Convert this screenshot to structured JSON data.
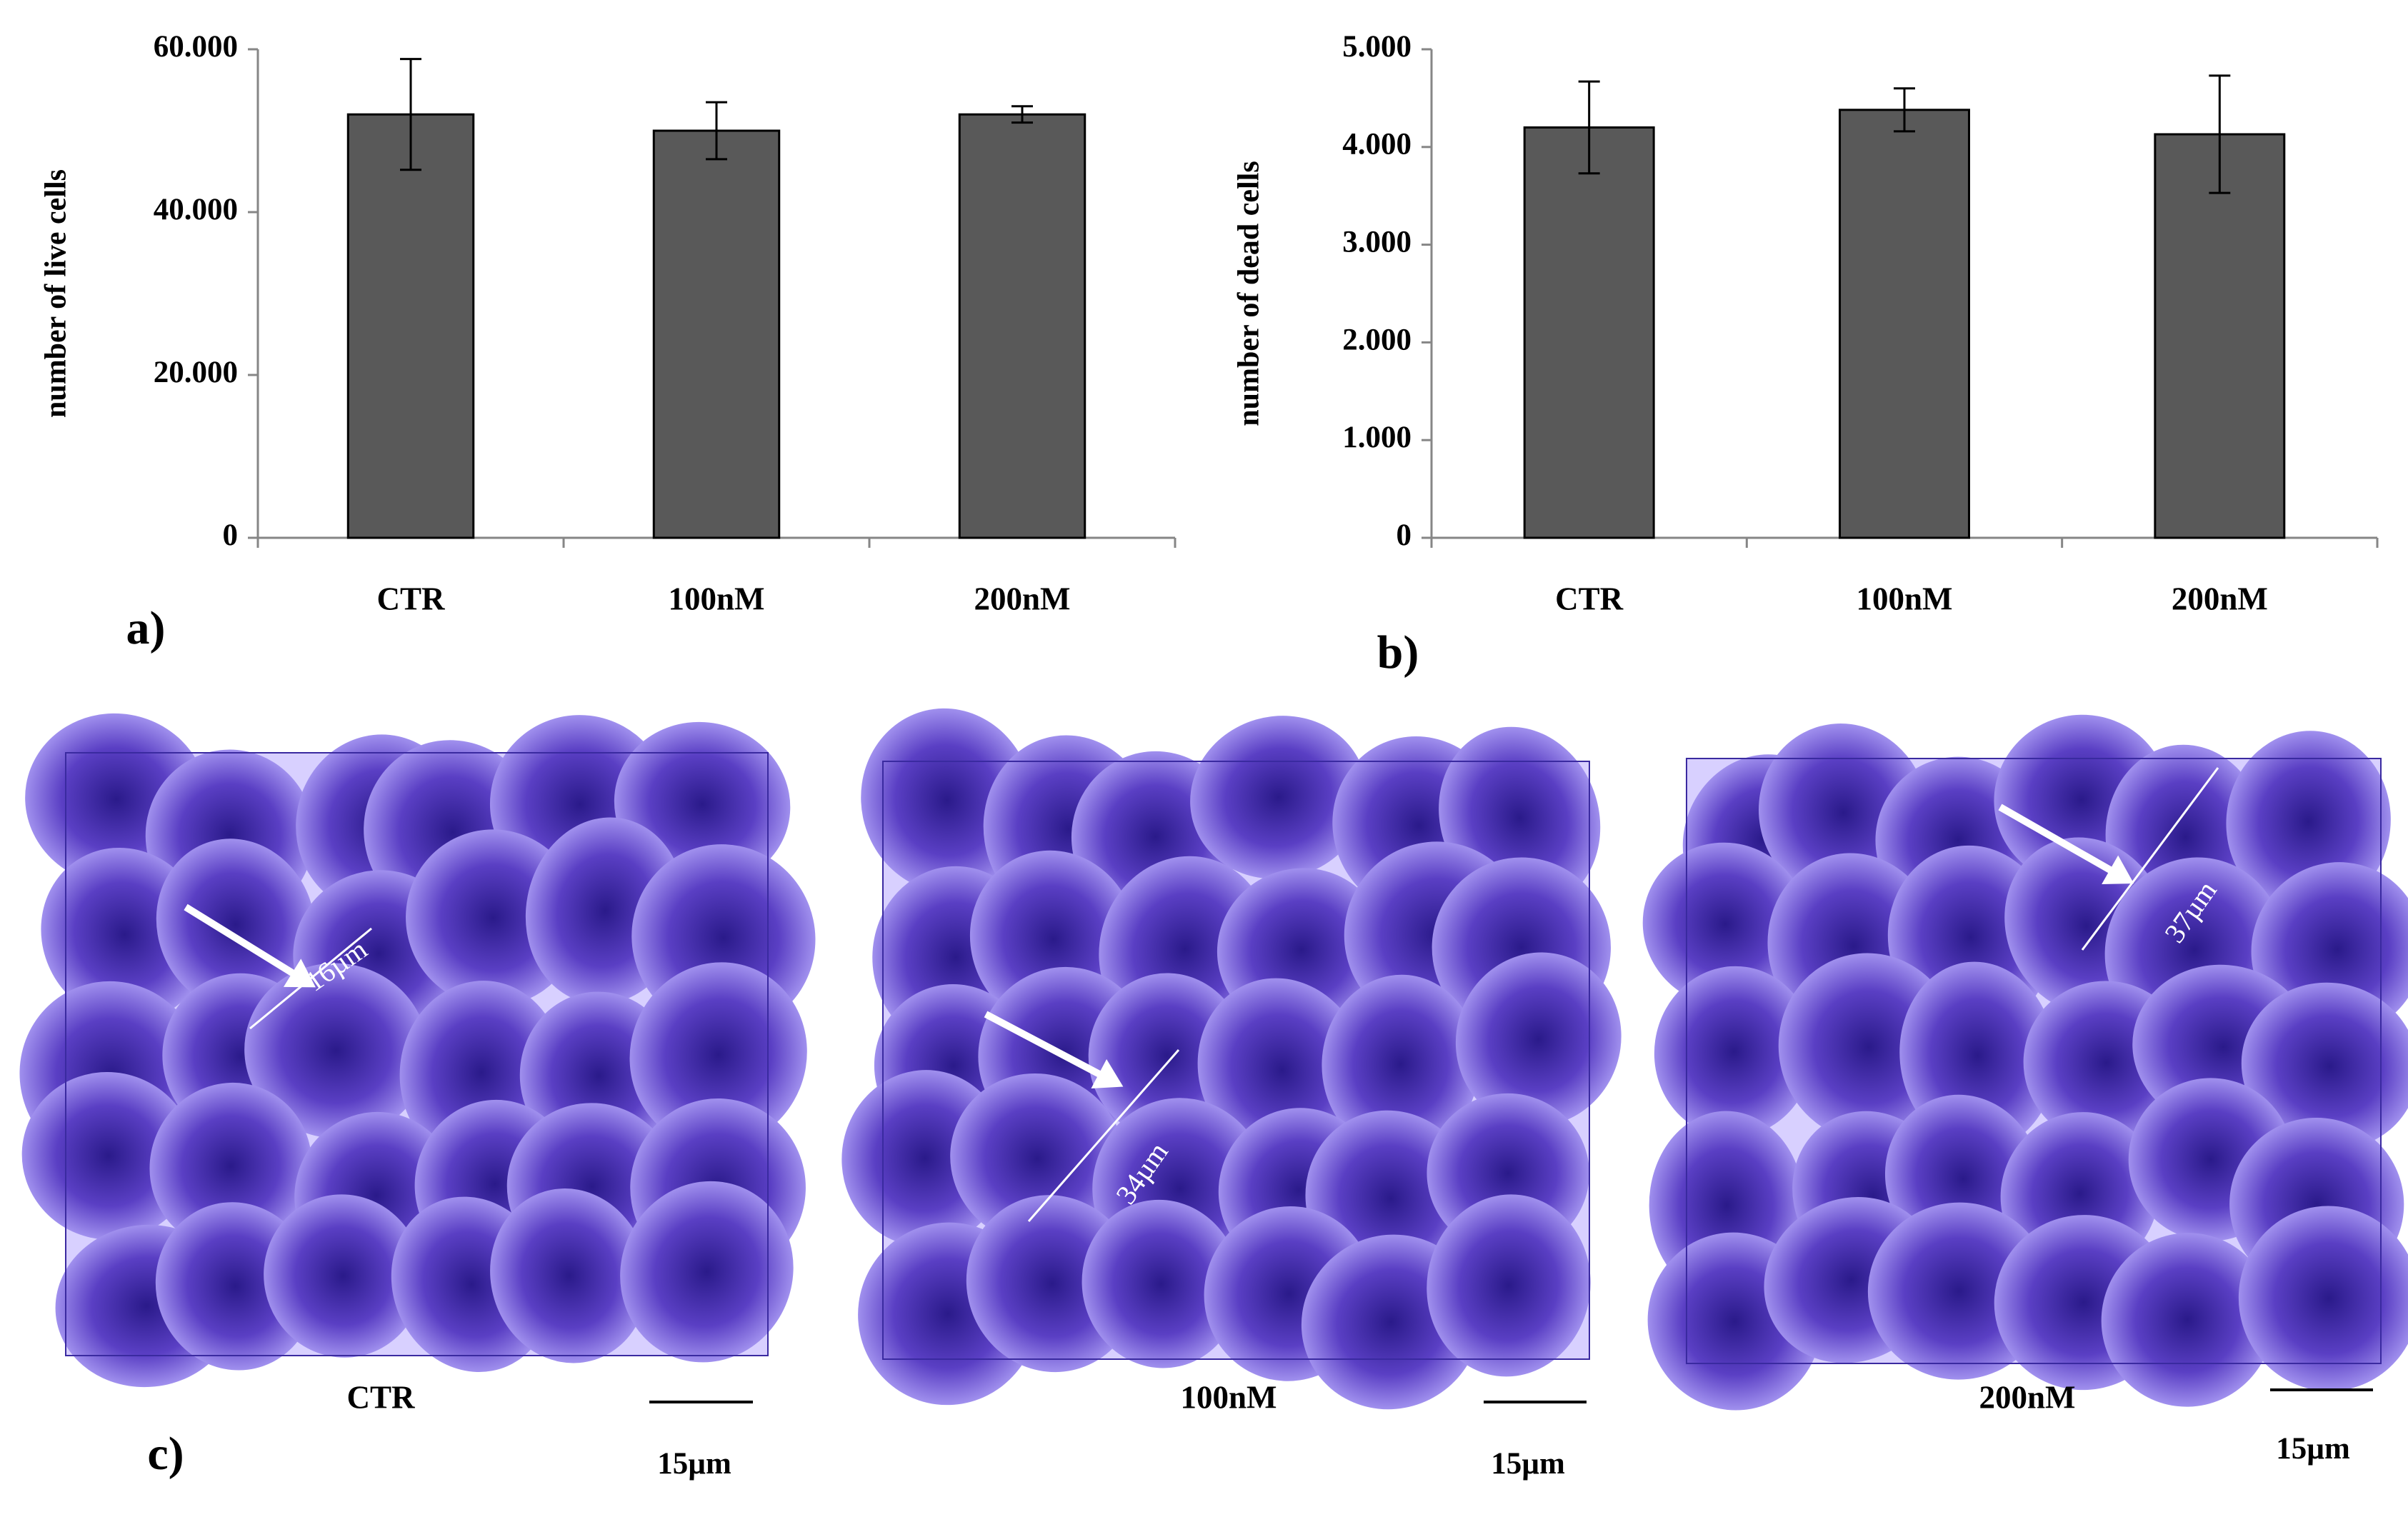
{
  "chart_data": [
    {
      "type": "bar",
      "panel_label": "a)",
      "y_label": "number of live cells",
      "categories": [
        "CTR",
        "100nM",
        "200nM"
      ],
      "values": [
        52000,
        50000,
        52000
      ],
      "errors": [
        6800,
        3500,
        1000
      ],
      "color": "#595959",
      "ylim": [
        0,
        60000
      ],
      "yticks": [
        0,
        {
          "value": 20000,
          "label": "20.000"
        },
        {
          "value": 40000,
          "label": "40.000"
        },
        {
          "value": 60000,
          "label": "60.000"
        }
      ]
    },
    {
      "type": "bar",
      "panel_label": "b)",
      "y_label": "number of dead cells",
      "categories": [
        "CTR",
        "100nM",
        "200nM"
      ],
      "values": [
        4200,
        4380,
        4130
      ],
      "errors": [
        470,
        220,
        600
      ],
      "color": "#595959",
      "ylim": [
        0,
        5000
      ],
      "yticks": [
        0,
        {
          "value": 1000,
          "label": "1.000"
        },
        {
          "value": 2000,
          "label": "2.000"
        },
        {
          "value": 3000,
          "label": "3.000"
        },
        {
          "value": 4000,
          "label": "4.000"
        },
        {
          "value": 5000,
          "label": "5.000"
        }
      ]
    }
  ],
  "panel_c": {
    "label": "c)",
    "images": [
      {
        "caption": "CTR",
        "measurement": "16µm",
        "scale_bar": "15µm"
      },
      {
        "caption": "100nM",
        "measurement": "34µm",
        "scale_bar": "15µm"
      },
      {
        "caption": "200nM",
        "measurement": "37µm",
        "scale_bar": "15µm"
      }
    ]
  }
}
